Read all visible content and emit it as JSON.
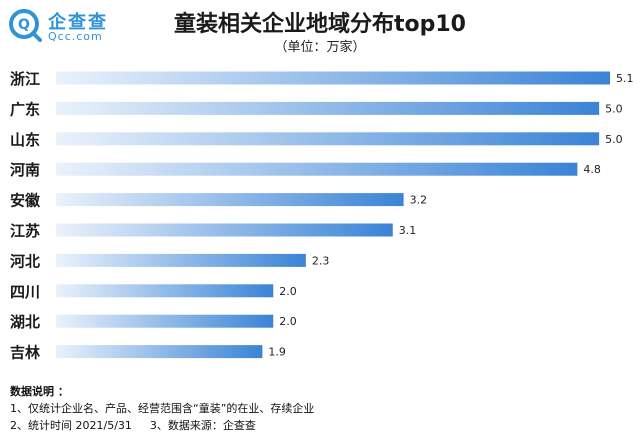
{
  "logo": {
    "name": "企查查",
    "domain": "Qcc.com"
  },
  "chart_data": {
    "type": "bar",
    "orientation": "horizontal",
    "title": "童装相关企业地域分布top10",
    "subtitle": "（单位：万家）",
    "categories": [
      "浙江",
      "广东",
      "山东",
      "河南",
      "安徽",
      "江苏",
      "河北",
      "四川",
      "湖北",
      "吉林"
    ],
    "values": [
      5.1,
      5.0,
      5.0,
      4.8,
      3.2,
      3.1,
      2.3,
      2.0,
      2.0,
      1.9
    ],
    "value_labels": [
      "5.1",
      "5.0",
      "5.0",
      "4.8",
      "3.2",
      "3.1",
      "2.3",
      "2.0",
      "2.0",
      "1.9"
    ],
    "xlim": [
      0,
      5.1
    ],
    "grid": false,
    "colors": {
      "bar_start": "#eaf2fb",
      "bar_end": "#3a83d6"
    }
  },
  "notes": {
    "heading": "数据说明 ：",
    "line1": "1、仅统计企业名、产品、经营范围含“童装”的在业、存续企业",
    "line2a": "2、统计时间  2021/5/31",
    "line2b": "3、数据来源：企查查"
  }
}
